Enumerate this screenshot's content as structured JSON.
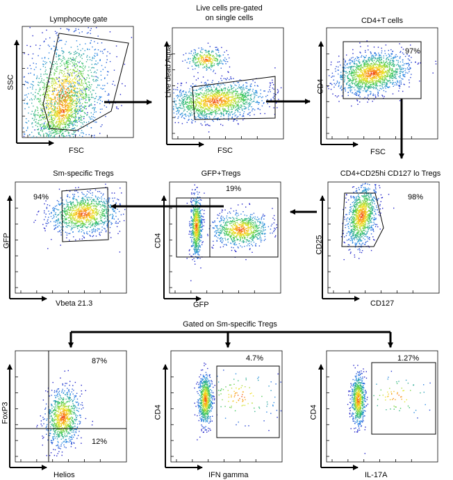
{
  "figure": {
    "panels": [
      {
        "id": "lymphocyte",
        "title": "Lymphocyte gate",
        "xlabel": "FSC",
        "ylabel": "SSC",
        "percent": ""
      },
      {
        "id": "live",
        "title": "Live cells pre-gated on single cells",
        "title_line1": "Live cells pre-gated",
        "title_line2": "on single cells",
        "xlabel": "FSC",
        "ylabel": "Live dead Aqua",
        "percent": ""
      },
      {
        "id": "cd4t",
        "title": "CD4+T cells",
        "xlabel": "FSC",
        "ylabel": "CD4",
        "percent": "97%"
      },
      {
        "id": "tregs",
        "title": "CD4+CD25hi CD127 lo Tregs",
        "xlabel": "CD127",
        "ylabel": "CD25",
        "percent": "98%"
      },
      {
        "id": "gfp",
        "title": "GFP+Tregs",
        "xlabel": "GFP",
        "ylabel": "CD4",
        "percent": "19%"
      },
      {
        "id": "smtregs",
        "title": "Sm-specific Tregs",
        "xlabel": "Vbeta 21.3",
        "ylabel": "GFP",
        "percent": "94%"
      },
      {
        "id": "foxp3",
        "title": "",
        "xlabel": "Helios",
        "ylabel": "FoxP3",
        "percent": "87%",
        "percent2": "12%"
      },
      {
        "id": "ifng",
        "title": "",
        "xlabel": "IFN gamma",
        "ylabel": "CD4",
        "percent": "4.7%"
      },
      {
        "id": "il17",
        "title": "",
        "xlabel": "IL-17A",
        "ylabel": "CD4",
        "percent": "1.27%"
      }
    ],
    "bottom_header": "Gated on Sm-specific Tregs"
  }
}
